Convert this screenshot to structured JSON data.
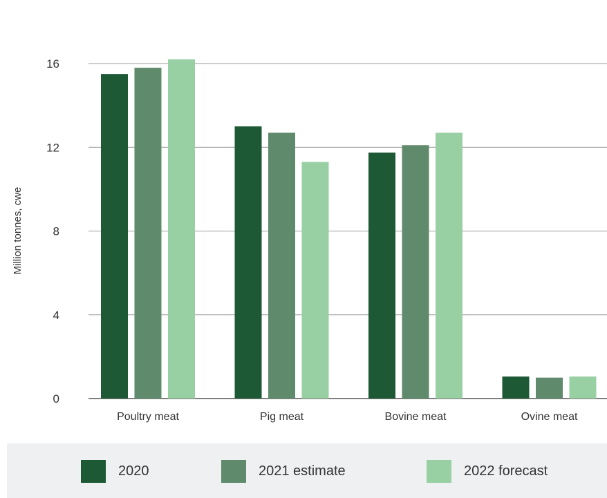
{
  "chart_data": {
    "type": "bar",
    "categories": [
      "Poultry meat",
      "Pig meat",
      "Bovine meat",
      "Ovine meat"
    ],
    "series": [
      {
        "name": "2020",
        "values": [
          15.5,
          13.0,
          11.75,
          1.05
        ],
        "color": "#1d5934"
      },
      {
        "name": "2021 estimate",
        "values": [
          15.8,
          12.7,
          12.1,
          1.0
        ],
        "color": "#5f8b6c"
      },
      {
        "name": "2022 forecast",
        "values": [
          16.2,
          11.3,
          12.7,
          1.05
        ],
        "color": "#98d0a4"
      }
    ],
    "title": "",
    "xlabel": "",
    "ylabel": "Million tonnes, cwe",
    "ylim": [
      0,
      16
    ],
    "yticks": [
      "0",
      "4",
      "8",
      "12",
      "16"
    ],
    "grid": true,
    "legend_position": "bottom"
  }
}
